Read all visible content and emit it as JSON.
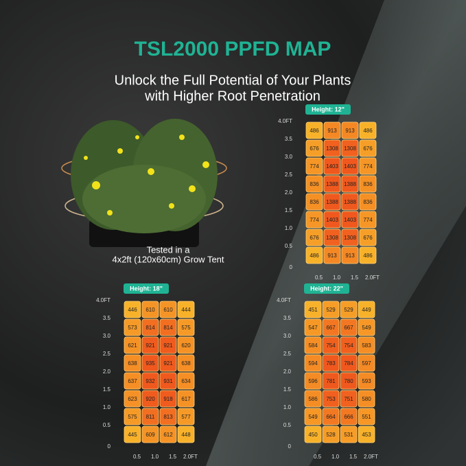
{
  "title": "TSL2000 PPFD MAP",
  "subtitle": [
    "Unlock the Full Potential of Your Plants",
    "with Higher Root Penetration"
  ],
  "caption": [
    "Tested in a",
    "4x2ft (120x60cm) Grow Tent"
  ],
  "maps": [
    {
      "height_label": "Height: 12\"",
      "yticks": [
        "4.0FT",
        "3.5",
        "3.0",
        "2.5",
        "2.0",
        "1.5",
        "1.0",
        "0.5",
        "0"
      ],
      "xticks": [
        "0.5",
        "1.0",
        "1.5",
        "2.0FT"
      ],
      "rows": [
        [
          486,
          913,
          913,
          486
        ],
        [
          676,
          1308,
          1308,
          676
        ],
        [
          774,
          1403,
          1403,
          774
        ],
        [
          836,
          1388,
          1388,
          836
        ],
        [
          836,
          1388,
          1388,
          836
        ],
        [
          774,
          1403,
          1403,
          774
        ],
        [
          676,
          1308,
          1308,
          676
        ],
        [
          486,
          913,
          913,
          486
        ]
      ]
    },
    {
      "height_label": "Height: 18\"",
      "yticks": [
        "4.0FT",
        "3.5",
        "3.0",
        "2.5",
        "2.0",
        "1.5",
        "1.0",
        "0.5",
        "0"
      ],
      "xticks": [
        "0.5",
        "1.0",
        "1.5",
        "2.0FT"
      ],
      "rows": [
        [
          446,
          610,
          610,
          444
        ],
        [
          573,
          814,
          814,
          575
        ],
        [
          621,
          921,
          921,
          620
        ],
        [
          638,
          935,
          921,
          638
        ],
        [
          637,
          932,
          931,
          634
        ],
        [
          623,
          920,
          918,
          617
        ],
        [
          575,
          811,
          813,
          577
        ],
        [
          445,
          609,
          612,
          448
        ]
      ]
    },
    {
      "height_label": "Height: 22\"",
      "yticks": [
        "4.0FT",
        "3.5",
        "3.0",
        "2.5",
        "2.0",
        "1.5",
        "1.0",
        "0.5",
        "0"
      ],
      "xticks": [
        "0.5",
        "1.0",
        "1.5",
        "2.0FT"
      ],
      "rows": [
        [
          451,
          529,
          529,
          449
        ],
        [
          547,
          667,
          667,
          549
        ],
        [
          584,
          754,
          754,
          583
        ],
        [
          594,
          783,
          784,
          597
        ],
        [
          596,
          781,
          780,
          593
        ],
        [
          586,
          753,
          751,
          580
        ],
        [
          549,
          664,
          666,
          551
        ],
        [
          450,
          528,
          531,
          453
        ]
      ]
    }
  ]
}
